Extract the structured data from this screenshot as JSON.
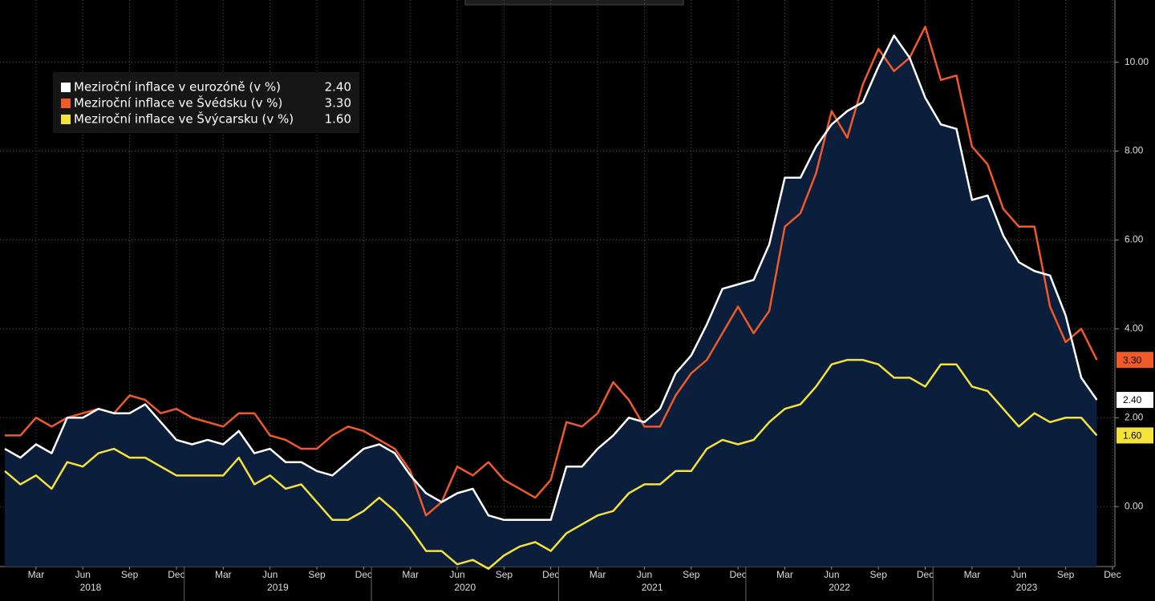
{
  "chart_data": {
    "type": "line",
    "x": [
      "2018-01",
      "2018-02",
      "2018-03",
      "2018-04",
      "2018-05",
      "2018-06",
      "2018-07",
      "2018-08",
      "2018-09",
      "2018-10",
      "2018-11",
      "2018-12",
      "2019-01",
      "2019-02",
      "2019-03",
      "2019-04",
      "2019-05",
      "2019-06",
      "2019-07",
      "2019-08",
      "2019-09",
      "2019-10",
      "2019-11",
      "2019-12",
      "2020-01",
      "2020-02",
      "2020-03",
      "2020-04",
      "2020-05",
      "2020-06",
      "2020-07",
      "2020-08",
      "2020-09",
      "2020-10",
      "2020-11",
      "2020-12",
      "2021-01",
      "2021-02",
      "2021-03",
      "2021-04",
      "2021-05",
      "2021-06",
      "2021-07",
      "2021-08",
      "2021-09",
      "2021-10",
      "2021-11",
      "2021-12",
      "2022-01",
      "2022-02",
      "2022-03",
      "2022-04",
      "2022-05",
      "2022-06",
      "2022-07",
      "2022-08",
      "2022-09",
      "2022-10",
      "2022-11",
      "2022-12",
      "2023-01",
      "2023-02",
      "2023-03",
      "2023-04",
      "2023-05",
      "2023-06",
      "2023-07",
      "2023-08",
      "2023-09",
      "2023-10",
      "2023-11"
    ],
    "series": [
      {
        "name": "Meziroční inflace v eurozóně (v %)",
        "color": "#ffffff",
        "area_color": "#0b1e3b",
        "last_label": "2.40",
        "values": [
          1.3,
          1.1,
          1.4,
          1.2,
          2.0,
          2.0,
          2.2,
          2.1,
          2.1,
          2.3,
          1.9,
          1.5,
          1.4,
          1.5,
          1.4,
          1.7,
          1.2,
          1.3,
          1.0,
          1.0,
          0.8,
          0.7,
          1.0,
          1.3,
          1.4,
          1.2,
          0.7,
          0.3,
          0.1,
          0.3,
          0.4,
          -0.2,
          -0.3,
          -0.3,
          -0.3,
          -0.3,
          0.9,
          0.9,
          1.3,
          1.6,
          2.0,
          1.9,
          2.2,
          3.0,
          3.4,
          4.1,
          4.9,
          5.0,
          5.1,
          5.9,
          7.4,
          7.4,
          8.1,
          8.6,
          8.9,
          9.1,
          9.9,
          10.6,
          10.1,
          9.2,
          8.6,
          8.5,
          6.9,
          7.0,
          6.1,
          5.5,
          5.3,
          5.2,
          4.3,
          2.9,
          2.4
        ]
      },
      {
        "name": "Meziroční inflace ve Švédsku (v %)",
        "color": "#f05a28",
        "last_label": "3.30",
        "values": [
          1.6,
          1.6,
          2.0,
          1.8,
          2.0,
          2.1,
          2.2,
          2.1,
          2.5,
          2.4,
          2.1,
          2.2,
          2.0,
          1.9,
          1.8,
          2.1,
          2.1,
          1.6,
          1.5,
          1.3,
          1.3,
          1.6,
          1.8,
          1.7,
          1.5,
          1.3,
          0.8,
          -0.2,
          0.1,
          0.9,
          0.7,
          1.0,
          0.6,
          0.4,
          0.2,
          0.6,
          1.9,
          1.8,
          2.1,
          2.8,
          2.4,
          1.8,
          1.8,
          2.5,
          3.0,
          3.3,
          3.9,
          4.5,
          3.9,
          4.4,
          6.3,
          6.6,
          7.5,
          8.9,
          8.3,
          9.5,
          10.3,
          9.8,
          10.1,
          10.8,
          9.6,
          9.7,
          8.1,
          7.7,
          6.7,
          6.3,
          6.3,
          4.5,
          3.7,
          4.0,
          3.3
        ]
      },
      {
        "name": "Meziroční inflace ve Švýcarsku (v %)",
        "color": "#f5e23a",
        "last_label": "1.60",
        "values": [
          0.8,
          0.5,
          0.7,
          0.4,
          1.0,
          0.9,
          1.2,
          1.3,
          1.1,
          1.1,
          0.9,
          0.7,
          0.7,
          0.7,
          0.7,
          1.1,
          0.5,
          0.7,
          0.4,
          0.5,
          0.1,
          -0.3,
          -0.3,
          -0.1,
          0.2,
          -0.1,
          -0.5,
          -1.0,
          -1.0,
          -1.3,
          -1.2,
          -1.4,
          -1.1,
          -0.9,
          -0.8,
          -1.0,
          -0.6,
          -0.4,
          -0.2,
          -0.1,
          0.3,
          0.5,
          0.5,
          0.8,
          0.8,
          1.3,
          1.5,
          1.4,
          1.5,
          1.9,
          2.2,
          2.3,
          2.7,
          3.2,
          3.3,
          3.3,
          3.2,
          2.9,
          2.9,
          2.7,
          3.2,
          3.2,
          2.7,
          2.6,
          2.2,
          1.8,
          2.1,
          1.9,
          2.0,
          2.0,
          1.6
        ]
      }
    ],
    "ylim": [
      -1.35,
      11.4
    ],
    "yticks": [
      {
        "value": 0,
        "label": "0.00"
      },
      {
        "value": 2,
        "label": "2.00"
      },
      {
        "value": 4,
        "label": "4.00"
      },
      {
        "value": 6,
        "label": "6.00"
      },
      {
        "value": 8,
        "label": "8.00"
      },
      {
        "value": 10,
        "label": "10.00"
      }
    ],
    "xticks": [
      {
        "value": "2018-03",
        "label": "Mar"
      },
      {
        "value": "2018-06",
        "label": "Jun"
      },
      {
        "value": "2018-09",
        "label": "Sep"
      },
      {
        "value": "2018-12",
        "label": "Dec"
      },
      {
        "value": "2019-03",
        "label": "Mar"
      },
      {
        "value": "2019-06",
        "label": "Jun"
      },
      {
        "value": "2019-09",
        "label": "Sep"
      },
      {
        "value": "2019-12",
        "label": "Dec"
      },
      {
        "value": "2020-03",
        "label": "Mar"
      },
      {
        "value": "2020-06",
        "label": "Jun"
      },
      {
        "value": "2020-09",
        "label": "Sep"
      },
      {
        "value": "2020-12",
        "label": "Dec"
      },
      {
        "value": "2021-03",
        "label": "Mar"
      },
      {
        "value": "2021-06",
        "label": "Jun"
      },
      {
        "value": "2021-09",
        "label": "Sep"
      },
      {
        "value": "2021-12",
        "label": "Dec"
      },
      {
        "value": "2022-03",
        "label": "Mar"
      },
      {
        "value": "2022-06",
        "label": "Jun"
      },
      {
        "value": "2022-09",
        "label": "Sep"
      },
      {
        "value": "2022-12",
        "label": "Dec"
      },
      {
        "value": "2023-03",
        "label": "Mar"
      },
      {
        "value": "2023-06",
        "label": "Jun"
      },
      {
        "value": "2023-09",
        "label": "Sep"
      },
      {
        "value": "2023-12",
        "label": "Dec"
      }
    ],
    "years": [
      2018,
      2019,
      2020,
      2021,
      2022,
      2023
    ],
    "grid": true
  }
}
